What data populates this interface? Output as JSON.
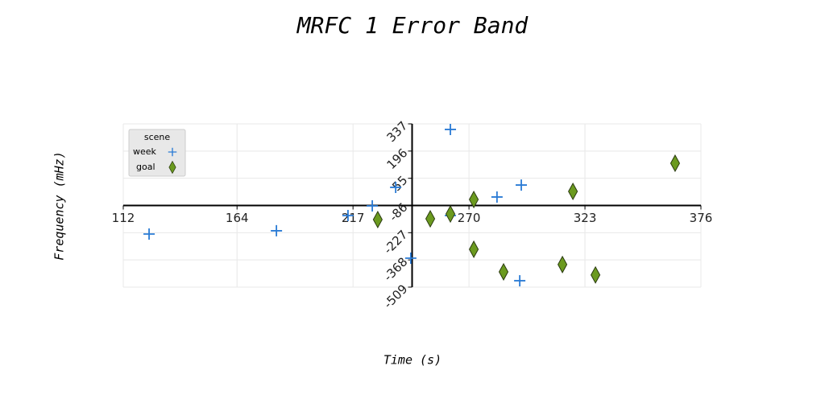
{
  "chart_data": {
    "type": "scatter",
    "title": "MRFC 1 Error Band",
    "x_label": "Time (s)",
    "y_label": "Frequency (mHz)",
    "legend_title": "scene",
    "legend": "upper left",
    "grid": true,
    "xlim": [
      112,
      376
    ],
    "xticks": [
      112,
      164,
      217,
      270,
      323,
      376
    ],
    "ylim": [
      -509,
      337
    ],
    "yticks": [
      337,
      196,
      55,
      -86,
      -227,
      -368,
      -509
    ],
    "series": [
      {
        "name": "week",
        "color": "#2a7bd5",
        "marker": "plus",
        "x": [
          123.8,
          182,
          214.7,
          225.8,
          236.5,
          243.4,
          261.5,
          261.5,
          282.8,
          293.9,
          293.2
        ],
        "values": [
          -234,
          -217,
          -138,
          -88,
          8,
          -359,
          308,
          -138,
          -42,
          20,
          -476
        ]
      },
      {
        "name": "goal",
        "color": "#6b9a1f",
        "marker": "diamond",
        "x": [
          228.3,
          252.3,
          261.5,
          272.2,
          272.2,
          285.8,
          312.7,
          317.5,
          327.8,
          364.2
        ],
        "values": [
          -159,
          -155,
          -130,
          -55,
          -313,
          -430,
          -392,
          -13,
          -446,
          133
        ]
      }
    ]
  }
}
